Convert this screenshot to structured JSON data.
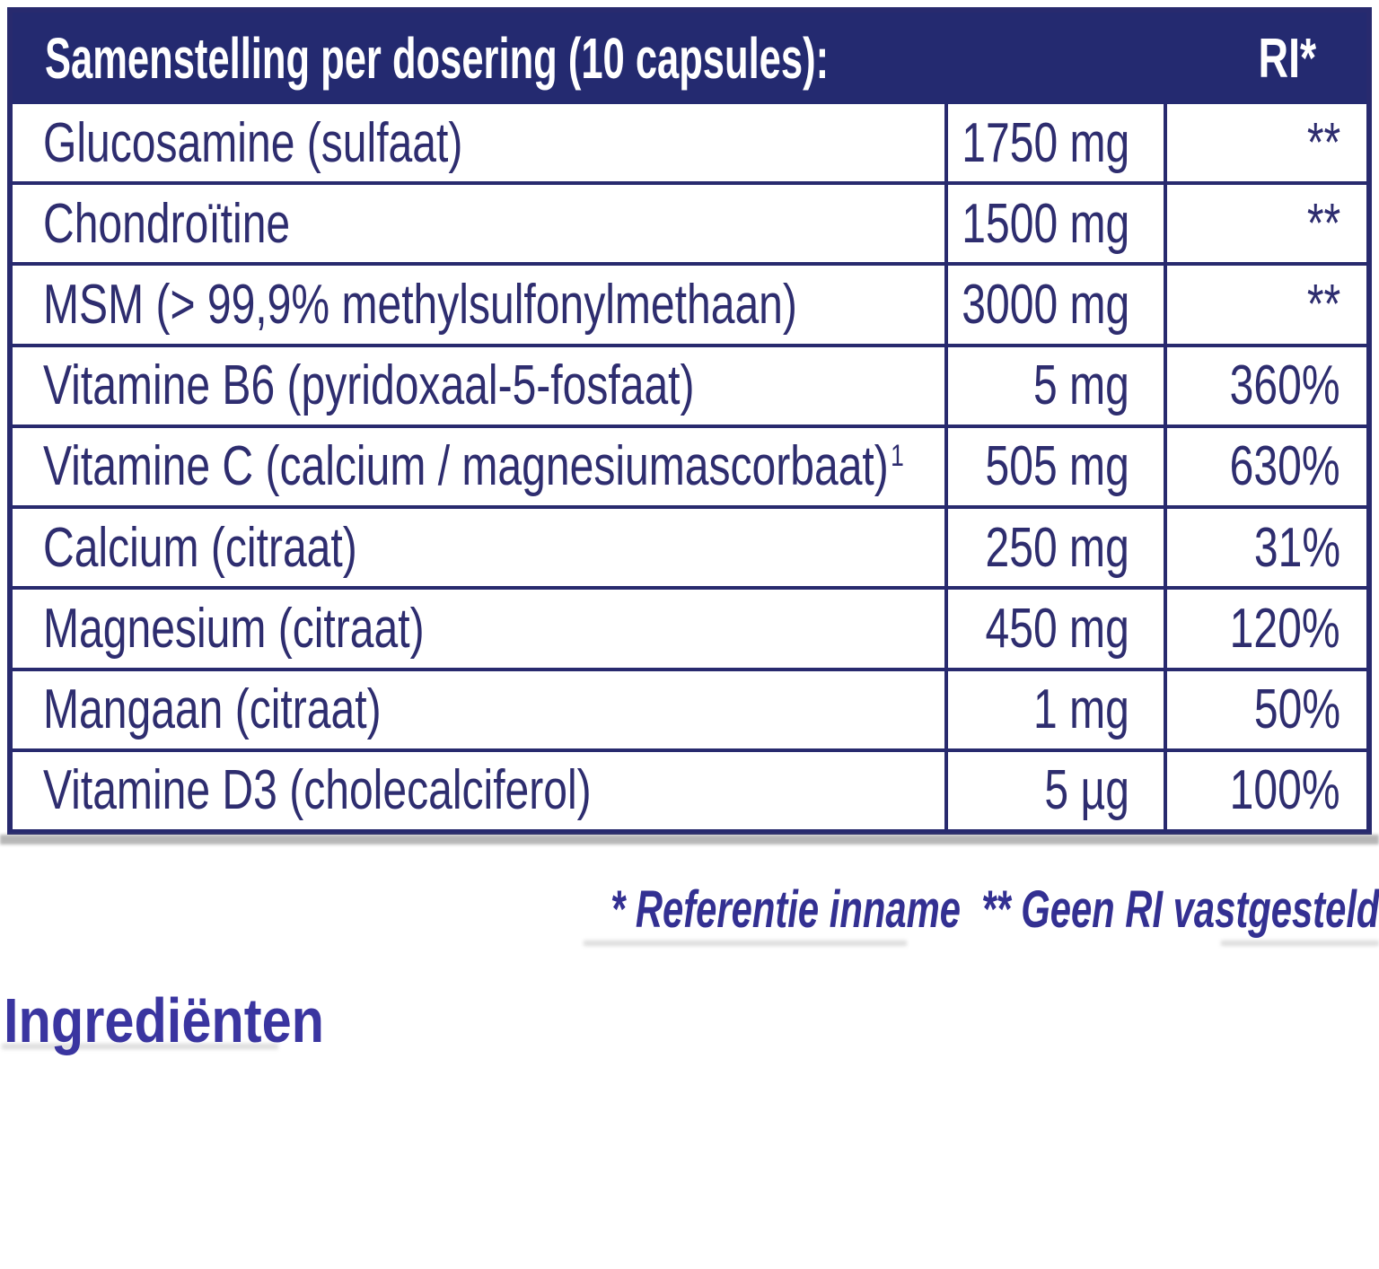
{
  "table": {
    "title": "Samenstelling per dosering (10 capsules):",
    "ri_header": "RI*",
    "rows": [
      {
        "name": "Glucosamine (sulfaat)",
        "footnote": "",
        "amount": "1750 mg",
        "ri": "**"
      },
      {
        "name": "Chondroïtine",
        "footnote": "",
        "amount": "1500 mg",
        "ri": "**"
      },
      {
        "name": "MSM (> 99,9% methylsulfonylmethaan)",
        "footnote": "",
        "amount": "3000 mg",
        "ri": "**"
      },
      {
        "name": "Vitamine B6 (pyridoxaal-5-fosfaat)",
        "footnote": "",
        "amount": "5 mg",
        "ri": "360%"
      },
      {
        "name": "Vitamine C (calcium / magnesiumascorbaat)",
        "footnote": "1",
        "amount": "505 mg",
        "ri": "630%"
      },
      {
        "name": "Calcium (citraat)",
        "footnote": "",
        "amount": "250 mg",
        "ri": "31%"
      },
      {
        "name": "Magnesium (citraat)",
        "footnote": "",
        "amount": "450 mg",
        "ri": "120%"
      },
      {
        "name": "Mangaan (citraat)",
        "footnote": "",
        "amount": "1 mg",
        "ri": "50%"
      },
      {
        "name": "Vitamine D3 (cholecalciferol)",
        "footnote": "",
        "amount": "5 µg",
        "ri": "100%"
      }
    ]
  },
  "legend": {
    "text": "* Referentie inname  ** Geen RI vastgesteld"
  },
  "ingredients_heading": "Ingrediënten",
  "colors": {
    "navy_border": "#282a6e",
    "header_background": "#242a70",
    "table_text": "#2e2d6f",
    "legend_text": "#333092",
    "heading_text": "#3a35a0",
    "background": "#ffffff"
  }
}
